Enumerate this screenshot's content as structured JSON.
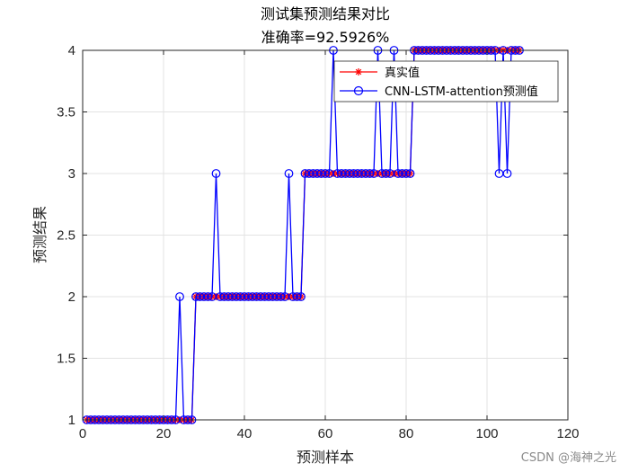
{
  "chart_data": {
    "type": "line",
    "title": "测试集预测结果对比",
    "subtitle": "准确率=92.5926%",
    "xlabel": "预测样本",
    "ylabel": "预测结果",
    "xlim": [
      0,
      120
    ],
    "ylim": [
      1,
      4
    ],
    "xticks": [
      0,
      20,
      40,
      60,
      80,
      100,
      120
    ],
    "yticks": [
      1,
      1.5,
      2,
      2.5,
      3,
      3.5,
      4
    ],
    "ytick_labels": [
      "1",
      "1.5",
      "2",
      "2.5",
      "3",
      "3.5",
      "4"
    ],
    "grid": true,
    "legend_position": "top-right",
    "series": [
      {
        "name": "真实值",
        "color": "#ff0000",
        "marker": "asterisk",
        "x": [
          1,
          2,
          3,
          4,
          5,
          6,
          7,
          8,
          9,
          10,
          11,
          12,
          13,
          14,
          15,
          16,
          17,
          18,
          19,
          20,
          21,
          22,
          23,
          24,
          25,
          26,
          27,
          28,
          29,
          30,
          31,
          32,
          33,
          34,
          35,
          36,
          37,
          38,
          39,
          40,
          41,
          42,
          43,
          44,
          45,
          46,
          47,
          48,
          49,
          50,
          51,
          52,
          53,
          54,
          55,
          56,
          57,
          58,
          59,
          60,
          61,
          62,
          63,
          64,
          65,
          66,
          67,
          68,
          69,
          70,
          71,
          72,
          73,
          74,
          75,
          76,
          77,
          78,
          79,
          80,
          81,
          82,
          83,
          84,
          85,
          86,
          87,
          88,
          89,
          90,
          91,
          92,
          93,
          94,
          95,
          96,
          97,
          98,
          99,
          100,
          101,
          102,
          103,
          104,
          105,
          106,
          107,
          108
        ],
        "values": [
          1,
          1,
          1,
          1,
          1,
          1,
          1,
          1,
          1,
          1,
          1,
          1,
          1,
          1,
          1,
          1,
          1,
          1,
          1,
          1,
          1,
          1,
          1,
          1,
          1,
          1,
          1,
          2,
          2,
          2,
          2,
          2,
          2,
          2,
          2,
          2,
          2,
          2,
          2,
          2,
          2,
          2,
          2,
          2,
          2,
          2,
          2,
          2,
          2,
          2,
          2,
          2,
          2,
          2,
          3,
          3,
          3,
          3,
          3,
          3,
          3,
          3,
          3,
          3,
          3,
          3,
          3,
          3,
          3,
          3,
          3,
          3,
          3,
          3,
          3,
          3,
          3,
          3,
          3,
          3,
          3,
          4,
          4,
          4,
          4,
          4,
          4,
          4,
          4,
          4,
          4,
          4,
          4,
          4,
          4,
          4,
          4,
          4,
          4,
          4,
          4,
          4,
          4,
          4,
          4,
          4,
          4,
          4
        ]
      },
      {
        "name": "CNN-LSTM-attention预测值",
        "color": "#0000ff",
        "marker": "circle",
        "x": [
          1,
          2,
          3,
          4,
          5,
          6,
          7,
          8,
          9,
          10,
          11,
          12,
          13,
          14,
          15,
          16,
          17,
          18,
          19,
          20,
          21,
          22,
          23,
          24,
          25,
          26,
          27,
          28,
          29,
          30,
          31,
          32,
          33,
          34,
          35,
          36,
          37,
          38,
          39,
          40,
          41,
          42,
          43,
          44,
          45,
          46,
          47,
          48,
          49,
          50,
          51,
          52,
          53,
          54,
          55,
          56,
          57,
          58,
          59,
          60,
          61,
          62,
          63,
          64,
          65,
          66,
          67,
          68,
          69,
          70,
          71,
          72,
          73,
          74,
          75,
          76,
          77,
          78,
          79,
          80,
          81,
          82,
          83,
          84,
          85,
          86,
          87,
          88,
          89,
          90,
          91,
          92,
          93,
          94,
          95,
          96,
          97,
          98,
          99,
          100,
          101,
          102,
          103,
          104,
          105,
          106,
          107,
          108
        ],
        "values": [
          1,
          1,
          1,
          1,
          1,
          1,
          1,
          1,
          1,
          1,
          1,
          1,
          1,
          1,
          1,
          1,
          1,
          1,
          1,
          1,
          1,
          1,
          1,
          2,
          1,
          1,
          1,
          2,
          2,
          2,
          2,
          2,
          3,
          2,
          2,
          2,
          2,
          2,
          2,
          2,
          2,
          2,
          2,
          2,
          2,
          2,
          2,
          2,
          2,
          2,
          3,
          2,
          2,
          2,
          3,
          3,
          3,
          3,
          3,
          3,
          3,
          4,
          3,
          3,
          3,
          3,
          3,
          3,
          3,
          3,
          3,
          3,
          4,
          3,
          3,
          3,
          4,
          3,
          3,
          3,
          3,
          4,
          4,
          4,
          4,
          4,
          4,
          4,
          4,
          4,
          4,
          4,
          4,
          4,
          4,
          4,
          4,
          4,
          4,
          4,
          4,
          4,
          3,
          4,
          3,
          4,
          4,
          4
        ]
      }
    ]
  },
  "watermark": "CSDN @海神之光"
}
